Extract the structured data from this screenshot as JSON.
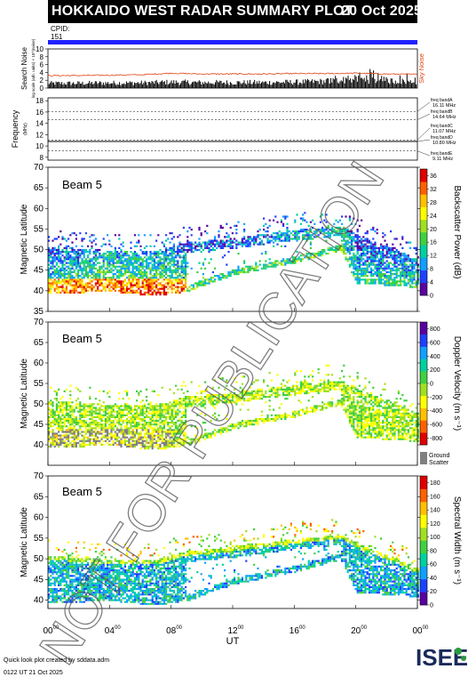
{
  "header": {
    "title": "HOKKAIDO WEST RADAR SUMMARY PLOT",
    "date": "20 Oct 2025",
    "cpid_label": "CPID:",
    "cpid_value": "151"
  },
  "watermark": "NOT FOR PUBLICATION",
  "colors": {
    "accent": "#2020ff",
    "noise_line": "#e04010",
    "freq_line": "#000000"
  },
  "chart_data": [
    {
      "type": "area",
      "ylabel": "Search Noise",
      "ylabel_sub": "log scale (arb. units) × 10^(noise)",
      "yticks": [
        0,
        2,
        4,
        6,
        8,
        10
      ],
      "ylim": [
        0,
        10
      ],
      "legend": "Sky Noise",
      "x": [
        0,
        2,
        4,
        6,
        8,
        10,
        12,
        14,
        16,
        18,
        20,
        22,
        24
      ],
      "sky_noise": [
        3.2,
        3.2,
        3.3,
        3.4,
        3.8,
        3.6,
        3.6,
        3.6,
        3.7,
        3.7,
        3.8,
        3.6,
        3.5
      ],
      "search_noise": [
        1.3,
        1.3,
        1.4,
        1.4,
        1.6,
        1.5,
        1.5,
        1.5,
        1.6,
        1.8,
        2.4,
        2.0,
        1.6
      ]
    },
    {
      "type": "line",
      "ylabel": "Frequency",
      "ylabel_sub": "(MHz)",
      "yticks": [
        8,
        10,
        12,
        14,
        16,
        18
      ],
      "ylim": [
        7.5,
        18.5
      ],
      "bands": [
        {
          "name": "freq bandA",
          "freq_label": "16.11 MHz",
          "value": 16.11
        },
        {
          "name": "freq bandB",
          "freq_label": "14.64 MHz",
          "value": 14.64
        },
        {
          "name": "freq bandC",
          "freq_label": "11.07 MHz",
          "value": 11.07
        },
        {
          "name": "freq bandD",
          "freq_label": "10.80 MHz",
          "value": 10.8
        },
        {
          "name": "freq bandE",
          "freq_label": "9.11 MHz",
          "value": 9.11
        }
      ],
      "active_frequency": 10.8
    },
    {
      "type": "heatmap",
      "beam_label": "Beam 5",
      "ylabel": "Magnetic Latitude",
      "ylim": [
        35,
        70
      ],
      "yticks": [
        35,
        40,
        45,
        50,
        55,
        60,
        65,
        70
      ],
      "colorbar_label": "Backscatter Power (dB)",
      "colorbar_ticks": [
        0,
        4,
        8,
        12,
        16,
        20,
        24,
        28,
        32,
        36
      ],
      "colorbar_range": [
        0,
        38
      ],
      "colormap": [
        "#5a00a0",
        "#2040ff",
        "#10a0ff",
        "#00d0a0",
        "#40d040",
        "#a0e020",
        "#ffff00",
        "#ffc000",
        "#ff6000",
        "#e00000"
      ],
      "echo_region": [
        {
          "ut": 0,
          "lat_lo": 39.5,
          "lat_hi": 51,
          "level": 0.45
        },
        {
          "ut": 4,
          "lat_lo": 40,
          "lat_hi": 50,
          "level": 0.5
        },
        {
          "ut": 7,
          "lat_lo": 39,
          "lat_hi": 50,
          "level": 0.55
        },
        {
          "ut": 9,
          "lat_lo": 40,
          "lat_hi": 52,
          "level": 0.45
        },
        {
          "ut": 12,
          "lat_lo": 44,
          "lat_hi": 53,
          "level": 0.4
        },
        {
          "ut": 16,
          "lat_lo": 47,
          "lat_hi": 55,
          "level": 0.45
        },
        {
          "ut": 19,
          "lat_lo": 50,
          "lat_hi": 56,
          "level": 0.5
        },
        {
          "ut": 20,
          "lat_lo": 42,
          "lat_hi": 54,
          "level": 0.4
        },
        {
          "ut": 24,
          "lat_lo": 41,
          "lat_hi": 48,
          "level": 0.4
        }
      ]
    },
    {
      "type": "heatmap",
      "beam_label": "Beam 5",
      "ylabel": "Magnetic Latitude",
      "ylim": [
        35,
        70
      ],
      "yticks": [
        40,
        45,
        50,
        55,
        60,
        65,
        70
      ],
      "colorbar_label": "Doppler Velocity (m s⁻¹)",
      "colorbar_ticks": [
        -800,
        -600,
        -400,
        -200,
        0,
        200,
        400,
        600,
        800
      ],
      "colorbar_range": [
        -900,
        900
      ],
      "colormap": [
        "#e00000",
        "#ff6000",
        "#ffc000",
        "#ffff00",
        "#a0e020",
        "#40d040",
        "#00d0a0",
        "#10a0ff",
        "#2040ff",
        "#5a00a0"
      ],
      "ground_scatter_label": "Ground Scatter"
    },
    {
      "type": "heatmap",
      "beam_label": "Beam 5",
      "ylabel": "Magnetic Latitude",
      "ylim": [
        38,
        70
      ],
      "yticks": [
        40,
        45,
        50,
        55,
        60,
        65,
        70
      ],
      "colorbar_label": "Spectral Width (m s⁻¹)",
      "colorbar_ticks": [
        0,
        20,
        40,
        60,
        80,
        100,
        120,
        140,
        160,
        180
      ],
      "colorbar_range": [
        0,
        190
      ],
      "colormap": [
        "#5a00a0",
        "#2040ff",
        "#10a0ff",
        "#00d0a0",
        "#40d040",
        "#a0e020",
        "#ffff00",
        "#ffc000",
        "#ff6000",
        "#e00000"
      ]
    }
  ],
  "x_axis": {
    "label": "UT",
    "ticks": [
      "00",
      "04",
      "08",
      "12",
      "16",
      "20",
      "00"
    ],
    "tick_sup": "00",
    "range_hours": [
      0,
      24
    ]
  },
  "footer": {
    "line1": "Quick look plot created by sddata.adm",
    "line2": "0122 UT 21 Oct 2025"
  },
  "logo": {
    "text": "ISEE",
    "icon": "isee-logo"
  }
}
